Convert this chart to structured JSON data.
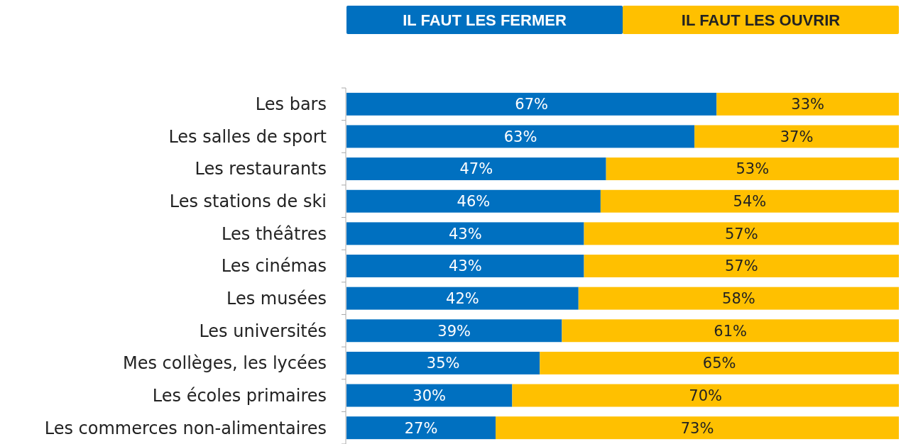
{
  "chart_data": {
    "type": "bar",
    "orientation": "horizontal",
    "stacked": true,
    "legend": "top",
    "categories": [
      "Les bars",
      "Les salles de sport",
      "Les restaurants",
      "Les stations de ski",
      "Les théâtres",
      "Les cinémas",
      "Les musées",
      "Les universités",
      "Mes collèges, les lycées",
      "Les écoles primaires",
      "Les commerces non-alimentaires"
    ],
    "series": [
      {
        "name": "IL FAUT LES FERMER",
        "color": "#0070c0",
        "values": [
          67,
          63,
          47,
          46,
          43,
          43,
          42,
          39,
          35,
          30,
          27
        ],
        "value_labels": [
          "67%",
          "63%",
          "47%",
          "46%",
          "43%",
          "43%",
          "42%",
          "39%",
          "35%",
          "30%",
          "27%"
        ]
      },
      {
        "name": "IL FAUT LES OUVRIR",
        "color": "#ffc000",
        "values": [
          33,
          37,
          53,
          54,
          57,
          57,
          58,
          61,
          65,
          70,
          73
        ],
        "value_labels": [
          "33%",
          "37%",
          "53%",
          "54%",
          "57%",
          "57%",
          "58%",
          "61%",
          "65%",
          "70%",
          "73%"
        ]
      }
    ]
  }
}
